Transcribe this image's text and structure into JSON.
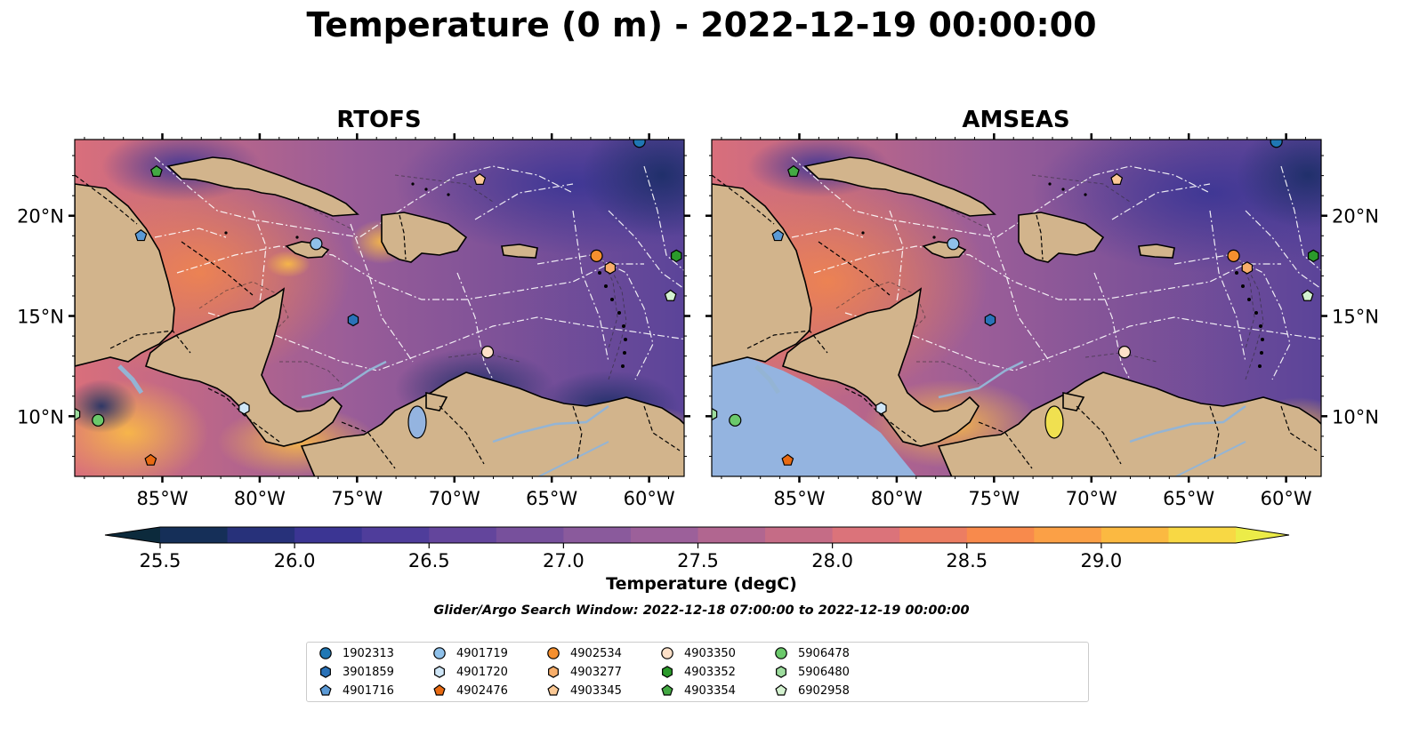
{
  "title": "Temperature (0 m) - 2022-12-19 00:00:00",
  "panels": [
    {
      "title": "RTOFS",
      "land_color": "#d2b48c",
      "no_data_color": "#d2b48c"
    },
    {
      "title": "AMSEAS",
      "land_color": "#d2b48c",
      "no_data_color": "#94b4e0"
    }
  ],
  "axes": {
    "lon_ticks": [
      "85°W",
      "80°W",
      "75°W",
      "70°W",
      "65°W",
      "60°W"
    ],
    "lat_ticks": [
      "20°N",
      "15°N",
      "10°N"
    ],
    "lon_range": [
      -89.5,
      -58.2
    ],
    "lat_range": [
      7.0,
      23.8
    ]
  },
  "colorbar": {
    "label": "Temperature (degC)",
    "tick_labels": [
      "25.5",
      "26.0",
      "26.5",
      "27.0",
      "27.5",
      "28.0",
      "28.5",
      "29.0"
    ],
    "range": [
      25.25,
      29.5
    ],
    "colors": [
      "#0c2a3c",
      "#152f58",
      "#27317a",
      "#3b3593",
      "#4f3d9b",
      "#63459c",
      "#77509c",
      "#8a5a9c",
      "#9c609a",
      "#b16690",
      "#c56c86",
      "#db737a",
      "#ec7d62",
      "#f88a4c",
      "#fba046",
      "#fbb941",
      "#f8d844",
      "#ecec48"
    ]
  },
  "search_window": "Glider/Argo Search Window: 2022-12-18 07:00:00 to 2022-12-19 00:00:00",
  "legend": {
    "items": [
      {
        "label": "1902313",
        "shape": "circle",
        "color": "#1f77b4"
      },
      {
        "label": "3901859",
        "shape": "hexagon",
        "color": "#2a72b8"
      },
      {
        "label": "4901716",
        "shape": "pentagon",
        "color": "#5b9ad6"
      },
      {
        "label": "4901719",
        "shape": "circle",
        "color": "#8fc1ea"
      },
      {
        "label": "4901720",
        "shape": "hexagon",
        "color": "#cfe6f7"
      },
      {
        "label": "4902476",
        "shape": "pentagon",
        "color": "#e86a12"
      },
      {
        "label": "4902534",
        "shape": "circle",
        "color": "#f58f2e"
      },
      {
        "label": "4903277",
        "shape": "hexagon",
        "color": "#f8ae6a"
      },
      {
        "label": "4903345",
        "shape": "pentagon",
        "color": "#fbc995"
      },
      {
        "label": "4903350",
        "shape": "circle",
        "color": "#fde0c8"
      },
      {
        "label": "4903352",
        "shape": "hexagon",
        "color": "#2b9a2b"
      },
      {
        "label": "4903354",
        "shape": "pentagon",
        "color": "#43a943"
      },
      {
        "label": "5906478",
        "shape": "circle",
        "color": "#6bc96b"
      },
      {
        "label": "5906480",
        "shape": "hexagon",
        "color": "#9ddc9d"
      },
      {
        "label": "6902958",
        "shape": "pentagon",
        "color": "#d4f2d0"
      }
    ]
  },
  "float_positions": [
    {
      "id": "1902313",
      "lon": -60.5,
      "lat": 23.7
    },
    {
      "id": "3901859",
      "lon": -75.2,
      "lat": 14.8
    },
    {
      "id": "4901716",
      "lon": -86.1,
      "lat": 19.0
    },
    {
      "id": "4901719",
      "lon": -77.1,
      "lat": 18.6
    },
    {
      "id": "4901720",
      "lon": -80.8,
      "lat": 10.4
    },
    {
      "id": "4902476",
      "lon": -85.6,
      "lat": 7.8
    },
    {
      "id": "4902534",
      "lon": -62.7,
      "lat": 18.0
    },
    {
      "id": "4903277",
      "lon": -62.0,
      "lat": 17.4
    },
    {
      "id": "4903345",
      "lon": -68.7,
      "lat": 21.8
    },
    {
      "id": "4903350",
      "lon": -68.3,
      "lat": 13.2
    },
    {
      "id": "4903352",
      "lon": -58.6,
      "lat": 18.0
    },
    {
      "id": "4903354",
      "lon": -85.3,
      "lat": 22.2
    },
    {
      "id": "5906478",
      "lon": -88.3,
      "lat": 9.8
    },
    {
      "id": "5906480",
      "lon": -89.5,
      "lat": 10.1
    },
    {
      "id": "6902958",
      "lon": -58.9,
      "lat": 16.0
    }
  ]
}
